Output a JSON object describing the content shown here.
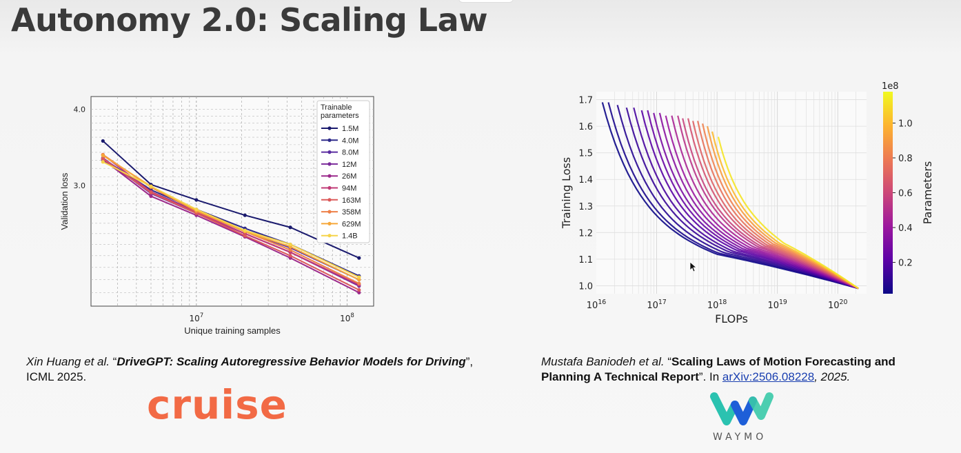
{
  "slide": {
    "title": "Autonomy 2.0: Scaling Law"
  },
  "left": {
    "citation_authors": "Xin Huang et al.",
    "citation_open_quote": " “",
    "citation_title": "DriveGPT: Scaling Autoregressive Behavior Models for Driving",
    "citation_venue": "”, ICML 2025.",
    "logo_text": "cruise"
  },
  "right": {
    "citation_authors": "Mustafa Baniodeh et al.",
    "citation_open_quote": " “",
    "citation_title": "Scaling Laws of Motion Forecasting and Planning A Technical Report",
    "citation_in": "”. In ",
    "citation_link": "arXiv:2506.08228",
    "citation_year": ", 2025.",
    "logo_text": "WAYMO"
  },
  "chart_data": [
    {
      "type": "line",
      "xlabel": "Unique training samples",
      "ylabel": "Validation loss",
      "x_scale": "log",
      "y_scale": "log",
      "xlim": [
        2000000,
        150000000
      ],
      "ylim": [
        1.9,
        4.2
      ],
      "x_ticks": [
        {
          "value": 10000000,
          "label": "10^7"
        },
        {
          "value": 100000000,
          "label": "10^8"
        }
      ],
      "y_ticks": [
        {
          "value": 3.0,
          "label": "3.0"
        },
        {
          "value": 4.0,
          "label": "4.0"
        }
      ],
      "grid": true,
      "legend_title": "Trainable parameters",
      "legend_position": "top-right",
      "x": [
        2400000,
        5000000,
        10000000,
        21000000,
        42000000,
        120000000
      ],
      "series": [
        {
          "name": "1.5M",
          "color": "#1a1a6e",
          "values": [
            3.55,
            3.01,
            2.84,
            2.68,
            2.56,
            2.28
          ]
        },
        {
          "name": "4.0M",
          "color": "#2e2a8a",
          "values": [
            3.32,
            2.95,
            2.74,
            2.55,
            2.4,
            2.13
          ]
        },
        {
          "name": "8.0M",
          "color": "#5a2ca0",
          "values": [
            3.3,
            2.93,
            2.72,
            2.52,
            2.37,
            2.1
          ]
        },
        {
          "name": "12M",
          "color": "#7b2b9b",
          "values": [
            3.33,
            2.91,
            2.7,
            2.5,
            2.33,
            2.05
          ]
        },
        {
          "name": "26M",
          "color": "#9c2a8c",
          "values": [
            3.31,
            2.88,
            2.68,
            2.47,
            2.28,
            2.0
          ]
        },
        {
          "name": "94M",
          "color": "#c03a76",
          "values": [
            3.37,
            2.93,
            2.71,
            2.5,
            2.33,
            2.06
          ]
        },
        {
          "name": "163M",
          "color": "#dc5a5a",
          "values": [
            3.32,
            2.92,
            2.7,
            2.48,
            2.3,
            2.02
          ]
        },
        {
          "name": "358M",
          "color": "#ee8048",
          "values": [
            3.37,
            2.98,
            2.72,
            2.52,
            2.35,
            2.07
          ]
        },
        {
          "name": "629M",
          "color": "#f6a83a",
          "values": [
            3.36,
            2.99,
            2.73,
            2.52,
            2.38,
            2.1
          ]
        },
        {
          "name": "1.4B",
          "color": "#f6d44a",
          "values": [
            3.28,
            2.99,
            2.74,
            2.53,
            2.4,
            2.12
          ]
        }
      ]
    },
    {
      "type": "line",
      "xlabel": "FLOPs",
      "ylabel": "Training Loss",
      "x_scale": "log",
      "xlim": [
        1e+16,
        3e+20
      ],
      "ylim": [
        0.97,
        1.73
      ],
      "x_ticks": [
        {
          "value": 1e+16,
          "label": "10^16"
        },
        {
          "value": 1e+17,
          "label": "10^17"
        },
        {
          "value": 1e+18,
          "label": "10^18"
        },
        {
          "value": 1e+19,
          "label": "10^19"
        },
        {
          "value": 1e+20,
          "label": "10^20"
        }
      ],
      "y_ticks": [
        1.0,
        1.1,
        1.2,
        1.3,
        1.4,
        1.5,
        1.6,
        1.7
      ],
      "grid": true,
      "colorbar": {
        "label": "Parameters",
        "multiplier": "1e8",
        "range": [
          0.02,
          1.18
        ],
        "ticks": [
          0.2,
          0.4,
          0.6,
          0.8,
          1.0
        ],
        "colors": [
          "#0d0887",
          "#5c01a6",
          "#9c179e",
          "#cc4778",
          "#ed7953",
          "#fdb42f",
          "#f0f921"
        ]
      },
      "end_point": [
        2.2e+20,
        0.99
      ],
      "curve_start_log_flops": [
        16.1,
        16.2,
        16.35,
        16.5,
        16.62,
        16.75,
        16.85,
        16.95,
        17.05,
        17.15,
        17.25,
        17.35,
        17.43,
        17.52,
        17.6,
        17.68,
        17.76,
        17.84,
        17.92,
        18.02
      ],
      "curve_start_loss": [
        1.69,
        1.69,
        1.68,
        1.67,
        1.67,
        1.66,
        1.66,
        1.65,
        1.65,
        1.64,
        1.64,
        1.64,
        1.63,
        1.63,
        1.62,
        1.62,
        1.61,
        1.6,
        1.58,
        1.56
      ],
      "curve_parameters_1e8": [
        0.02,
        0.05,
        0.08,
        0.12,
        0.16,
        0.2,
        0.25,
        0.3,
        0.35,
        0.4,
        0.46,
        0.52,
        0.58,
        0.64,
        0.7,
        0.76,
        0.82,
        0.9,
        1.0,
        1.12
      ]
    }
  ]
}
